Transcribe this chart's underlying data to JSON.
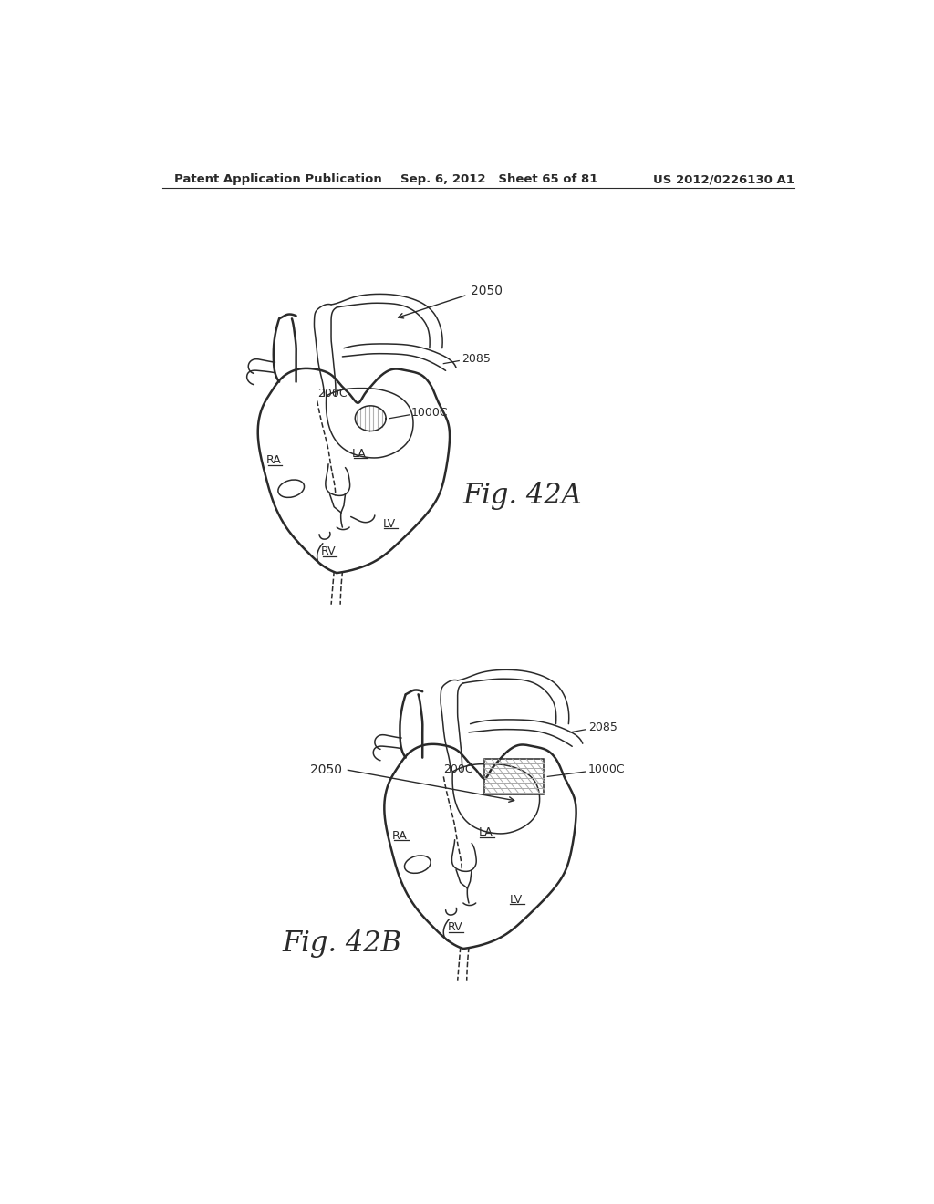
{
  "bg_color": "#ffffff",
  "line_color": "#2a2a2a",
  "header_left": "Patent Application Publication",
  "header_mid": "Sep. 6, 2012   Sheet 65 of 81",
  "header_right": "US 2012/0226130 A1",
  "fig_a_label": "Fig. 42A",
  "fig_b_label": "Fig. 42B",
  "label_2050a": "2050",
  "label_2085a": "2085",
  "label_200Ca": "200C",
  "label_1000Ca": "1000C",
  "label_RAa": "RA",
  "label_LAa": "LA",
  "label_LVa": "LV",
  "label_RVa": "RV",
  "label_2050b": "2050",
  "label_2085b": "2085",
  "label_200Cb": "200C",
  "label_1000Cb": "1000C",
  "label_RAb": "RA",
  "label_LAb": "LA",
  "label_LVb": "LV",
  "label_RVb": "RV"
}
